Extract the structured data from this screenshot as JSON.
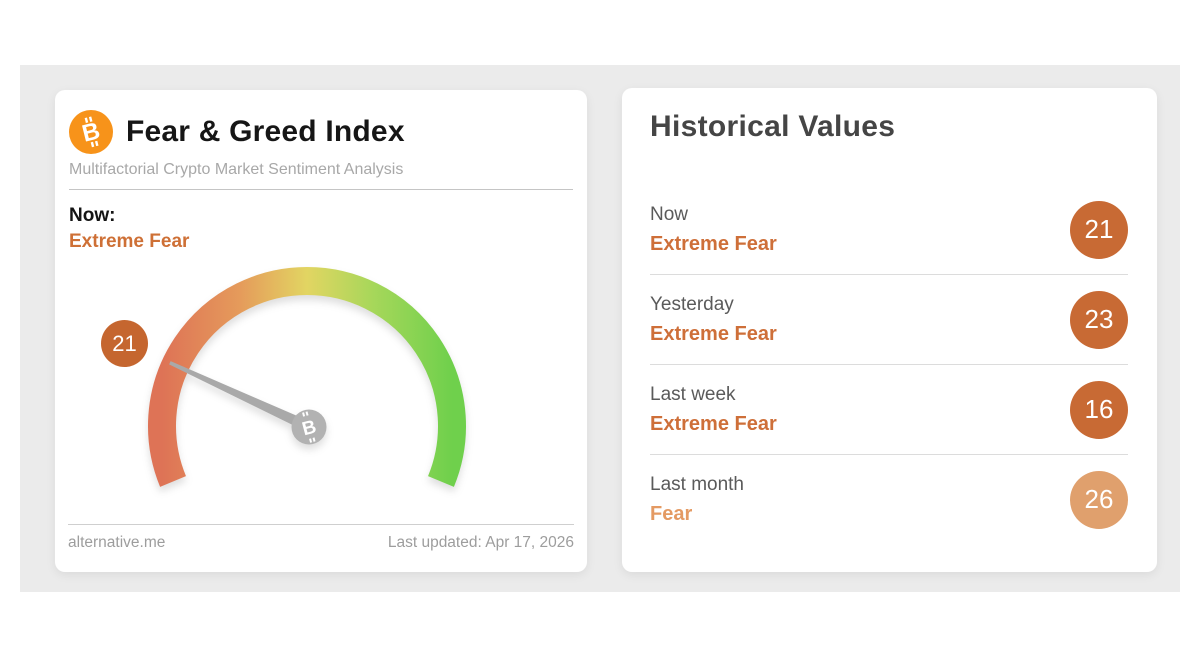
{
  "fng_card": {
    "title": "Fear & Greed Index",
    "subtitle": "Multifactorial Crypto Market Sentiment Analysis",
    "now_label": "Now:",
    "now_sentiment": "Extreme Fear",
    "now_sentiment_color": "#ce7036",
    "footer_left": "alternative.me",
    "footer_right": "Last updated: Apr 17, 2026",
    "bitcoin_glyph": "B"
  },
  "chart_data": {
    "type": "gauge",
    "title": "Fear & Greed Index",
    "value": 21,
    "sentiment": "Extreme Fear",
    "min": 0,
    "max": 100,
    "start_angle_deg": 202.5,
    "sweep_deg": 225,
    "badge_color": "#c5662f",
    "needle_color": "#a9a9a9",
    "hub_color": "#b2b2b2",
    "color_stops": [
      "#de7356",
      "#e59b5b",
      "#e2d562",
      "#a6d75a",
      "#6fd04c"
    ]
  },
  "historical": {
    "title": "Historical Values",
    "rows": [
      {
        "label": "Now",
        "sentiment": "Extreme Fear",
        "value": 21,
        "sentiment_color": "#ce6f39",
        "badge_color": "#c86a34"
      },
      {
        "label": "Yesterday",
        "sentiment": "Extreme Fear",
        "value": 23,
        "sentiment_color": "#ce6f39",
        "badge_color": "#c86a34"
      },
      {
        "label": "Last week",
        "sentiment": "Extreme Fear",
        "value": 16,
        "sentiment_color": "#ce6f39",
        "badge_color": "#c86a34"
      },
      {
        "label": "Last month",
        "sentiment": "Fear",
        "value": 26,
        "sentiment_color": "#e49a63",
        "badge_color": "#e0a06d"
      }
    ]
  }
}
